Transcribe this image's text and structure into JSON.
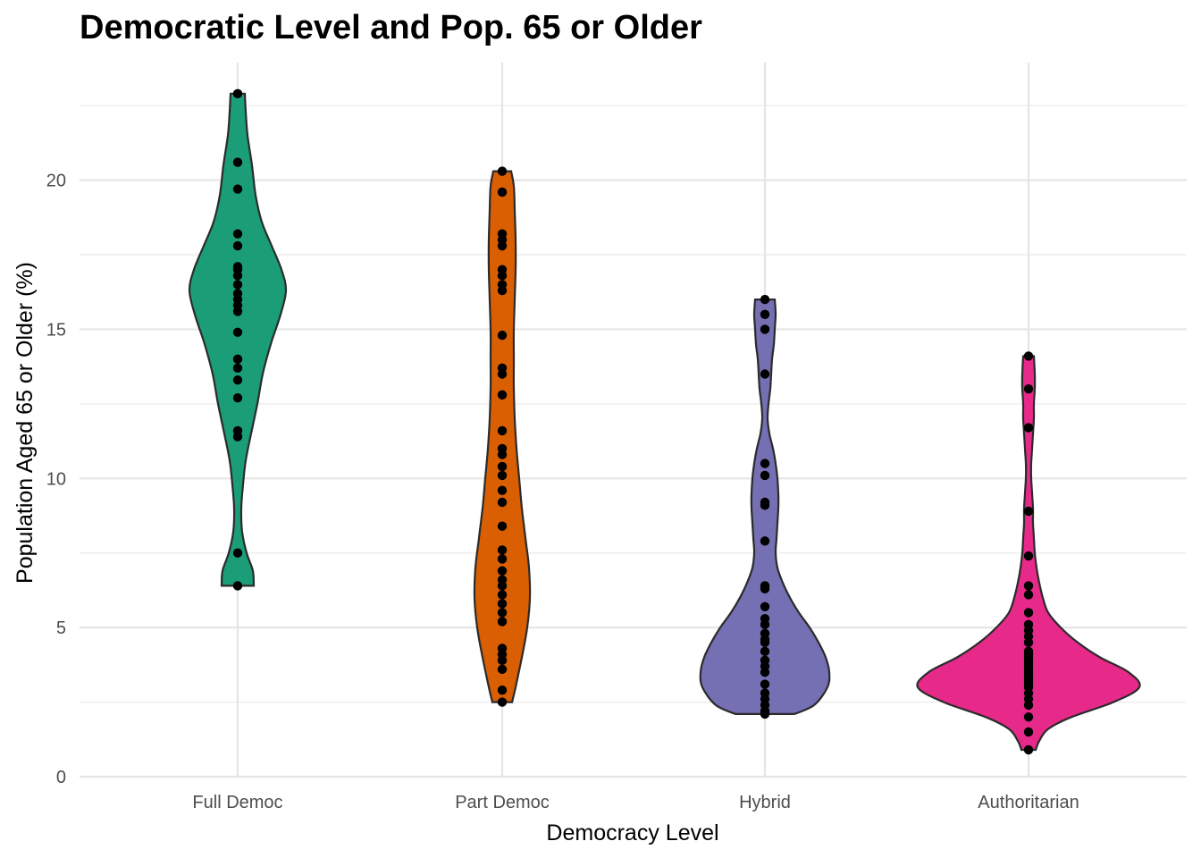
{
  "chart_data": {
    "type": "violin",
    "title": "Democratic Level and Pop. 65 or Older",
    "xlabel": "Democracy Level",
    "ylabel": "Population Aged 65 or Older (%)",
    "ylim": [
      0,
      23.6
    ],
    "yticks": [
      0,
      5,
      10,
      15,
      20
    ],
    "grid": true,
    "categories": [
      "Full Democ",
      "Part Democ",
      "Hybrid",
      "Authoritarian"
    ],
    "colors": [
      "#1b9e77",
      "#d95f02",
      "#7570b3",
      "#e7298a"
    ],
    "violins": [
      {
        "category": "Full Democ",
        "points": [
          6.4,
          7.5,
          11.4,
          11.6,
          12.7,
          13.3,
          13.7,
          14.0,
          14.9,
          15.6,
          15.8,
          16.0,
          16.2,
          16.5,
          16.8,
          17.0,
          17.1,
          17.8,
          18.2,
          19.7,
          20.6,
          22.9
        ],
        "density": [
          [
            6.4,
            18
          ],
          [
            6.9,
            17
          ],
          [
            7.5,
            10
          ],
          [
            8.2,
            5
          ],
          [
            9.0,
            4
          ],
          [
            9.8,
            6
          ],
          [
            10.6,
            9
          ],
          [
            11.5,
            15
          ],
          [
            12.5,
            22
          ],
          [
            13.5,
            28
          ],
          [
            14.5,
            37
          ],
          [
            15.5,
            48
          ],
          [
            16.3,
            54
          ],
          [
            17.0,
            49
          ],
          [
            17.8,
            38
          ],
          [
            18.6,
            27
          ],
          [
            19.5,
            20
          ],
          [
            20.5,
            16
          ],
          [
            21.5,
            11
          ],
          [
            22.3,
            9
          ],
          [
            22.9,
            8
          ]
        ]
      },
      {
        "category": "Part Democ",
        "points": [
          2.5,
          2.9,
          3.6,
          3.9,
          4.1,
          4.3,
          5.2,
          5.5,
          5.8,
          6.1,
          6.4,
          6.6,
          6.9,
          7.3,
          7.6,
          8.4,
          9.2,
          9.6,
          10.1,
          10.4,
          10.8,
          11.0,
          11.6,
          12.8,
          13.5,
          13.7,
          14.8,
          16.3,
          16.5,
          16.8,
          17.0,
          17.8,
          18.0,
          18.2,
          19.6,
          20.3
        ],
        "density": [
          [
            2.5,
            11
          ],
          [
            3.0,
            15
          ],
          [
            4.0,
            22
          ],
          [
            5.0,
            28
          ],
          [
            6.0,
            31
          ],
          [
            7.0,
            30
          ],
          [
            8.0,
            26
          ],
          [
            9.0,
            22
          ],
          [
            10.0,
            19
          ],
          [
            11.0,
            16
          ],
          [
            12.0,
            14
          ],
          [
            13.0,
            13
          ],
          [
            14.0,
            13
          ],
          [
            15.0,
            13
          ],
          [
            16.0,
            14
          ],
          [
            17.0,
            15
          ],
          [
            18.0,
            15
          ],
          [
            19.0,
            14
          ],
          [
            19.8,
            13
          ],
          [
            20.3,
            10
          ]
        ]
      },
      {
        "category": "Hybrid",
        "points": [
          2.1,
          2.2,
          2.4,
          2.6,
          2.8,
          3.1,
          3.5,
          3.7,
          3.9,
          4.2,
          4.5,
          4.6,
          4.8,
          5.1,
          5.3,
          5.7,
          6.3,
          6.4,
          7.9,
          9.1,
          9.2,
          10.1,
          10.5,
          13.5,
          15.0,
          15.5,
          16.0
        ],
        "density": [
          [
            2.1,
            33
          ],
          [
            2.4,
            55
          ],
          [
            3.0,
            70
          ],
          [
            3.5,
            72
          ],
          [
            4.0,
            68
          ],
          [
            4.5,
            60
          ],
          [
            5.0,
            50
          ],
          [
            5.5,
            38
          ],
          [
            6.0,
            28
          ],
          [
            6.5,
            20
          ],
          [
            7.0,
            14
          ],
          [
            7.5,
            12
          ],
          [
            8.0,
            13
          ],
          [
            8.5,
            14
          ],
          [
            9.0,
            15
          ],
          [
            9.5,
            15
          ],
          [
            10.0,
            14
          ],
          [
            10.5,
            12
          ],
          [
            11.0,
            9
          ],
          [
            11.5,
            5
          ],
          [
            12.0,
            3
          ],
          [
            12.5,
            4
          ],
          [
            13.0,
            6
          ],
          [
            13.5,
            7
          ],
          [
            14.0,
            8
          ],
          [
            14.5,
            10
          ],
          [
            15.0,
            11
          ],
          [
            15.5,
            12
          ],
          [
            16.0,
            11
          ]
        ]
      },
      {
        "category": "Authoritarian",
        "points": [
          0.9,
          1.5,
          2.0,
          2.4,
          2.6,
          2.8,
          3.0,
          3.1,
          3.2,
          3.3,
          3.4,
          3.5,
          3.6,
          3.7,
          3.8,
          3.9,
          4.0,
          4.1,
          4.2,
          4.5,
          4.7,
          4.9,
          5.1,
          5.5,
          6.1,
          6.4,
          7.4,
          8.9,
          11.7,
          13.0,
          14.1
        ],
        "density": [
          [
            0.9,
            8
          ],
          [
            1.2,
            12
          ],
          [
            1.6,
            22
          ],
          [
            2.0,
            48
          ],
          [
            2.5,
            95
          ],
          [
            3.0,
            124
          ],
          [
            3.5,
            112
          ],
          [
            4.0,
            80
          ],
          [
            4.5,
            55
          ],
          [
            5.0,
            36
          ],
          [
            5.5,
            22
          ],
          [
            6.0,
            16
          ],
          [
            6.5,
            12
          ],
          [
            7.0,
            9
          ],
          [
            7.5,
            7
          ],
          [
            8.0,
            6
          ],
          [
            8.5,
            5
          ],
          [
            9.0,
            5
          ],
          [
            9.5,
            4
          ],
          [
            10.0,
            3
          ],
          [
            10.5,
            3
          ],
          [
            11.0,
            4
          ],
          [
            11.5,
            5
          ],
          [
            12.0,
            6
          ],
          [
            12.5,
            6
          ],
          [
            13.0,
            7
          ],
          [
            13.5,
            7
          ],
          [
            14.1,
            6
          ]
        ]
      }
    ]
  }
}
